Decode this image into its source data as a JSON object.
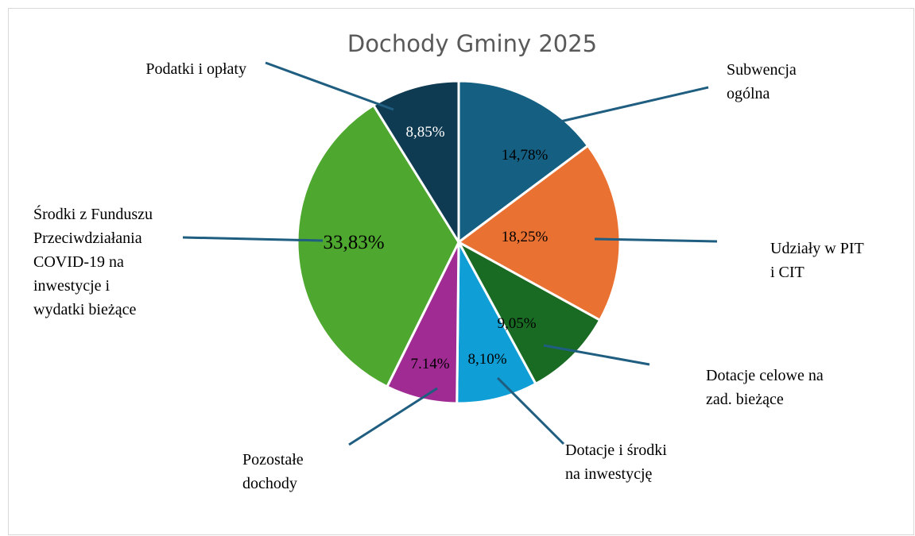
{
  "chart_data": {
    "type": "pie",
    "title": "Dochody Gminy 2025",
    "slices": [
      {
        "name": "Subwencja ogólna",
        "lines": [
          "Subwencja",
          "ogólna"
        ],
        "value": 14.78,
        "label": "14,78%",
        "color": "#156082",
        "label_color": "#000000"
      },
      {
        "name": "Udziały w PIT i CIT",
        "lines": [
          "Udziały w PIT",
          "i CIT"
        ],
        "value": 18.25,
        "label": "18,25%",
        "color": "#E97132",
        "label_color": "#000000"
      },
      {
        "name": "Dotacje celowe na zad. bieżące",
        "lines": [
          "Dotacje celowe na",
          "zad. bieżące"
        ],
        "value": 9.05,
        "label": "9,05%",
        "color": "#196B24",
        "label_color": "#000000"
      },
      {
        "name": "Dotacje i środki na inwestycję",
        "lines": [
          "Dotacje i środki",
          "na inwestycję"
        ],
        "value": 8.1,
        "label": "8,10%",
        "color": "#0F9ED5",
        "label_color": "#000000"
      },
      {
        "name": "Pozostałe dochody",
        "lines": [
          "Pozostałe",
          "dochody"
        ],
        "value": 7.14,
        "label": "7.14%",
        "color": "#A02B93",
        "label_color": "#000000"
      },
      {
        "name": "Środki z Funduszu Przeciwdziałania COVID-19 na inwestycje i wydatki bieżące",
        "lines": [
          "Środki z Funduszu",
          "Przeciwdziałania",
          "COVID-19 na",
          "inwestycje i",
          "wydatki bieżące"
        ],
        "value": 33.83,
        "label": "33,83%",
        "color": "#4EA72E",
        "label_color": "#000000"
      },
      {
        "name": "Podatki i opłaty",
        "lines": [
          "Podatki i opłaty"
        ],
        "value": 8.85,
        "label": "8,85%",
        "color": "#0E3A52",
        "label_color": "#ffffff"
      }
    ],
    "legend": "none",
    "leader_color": "#1F5E80"
  }
}
